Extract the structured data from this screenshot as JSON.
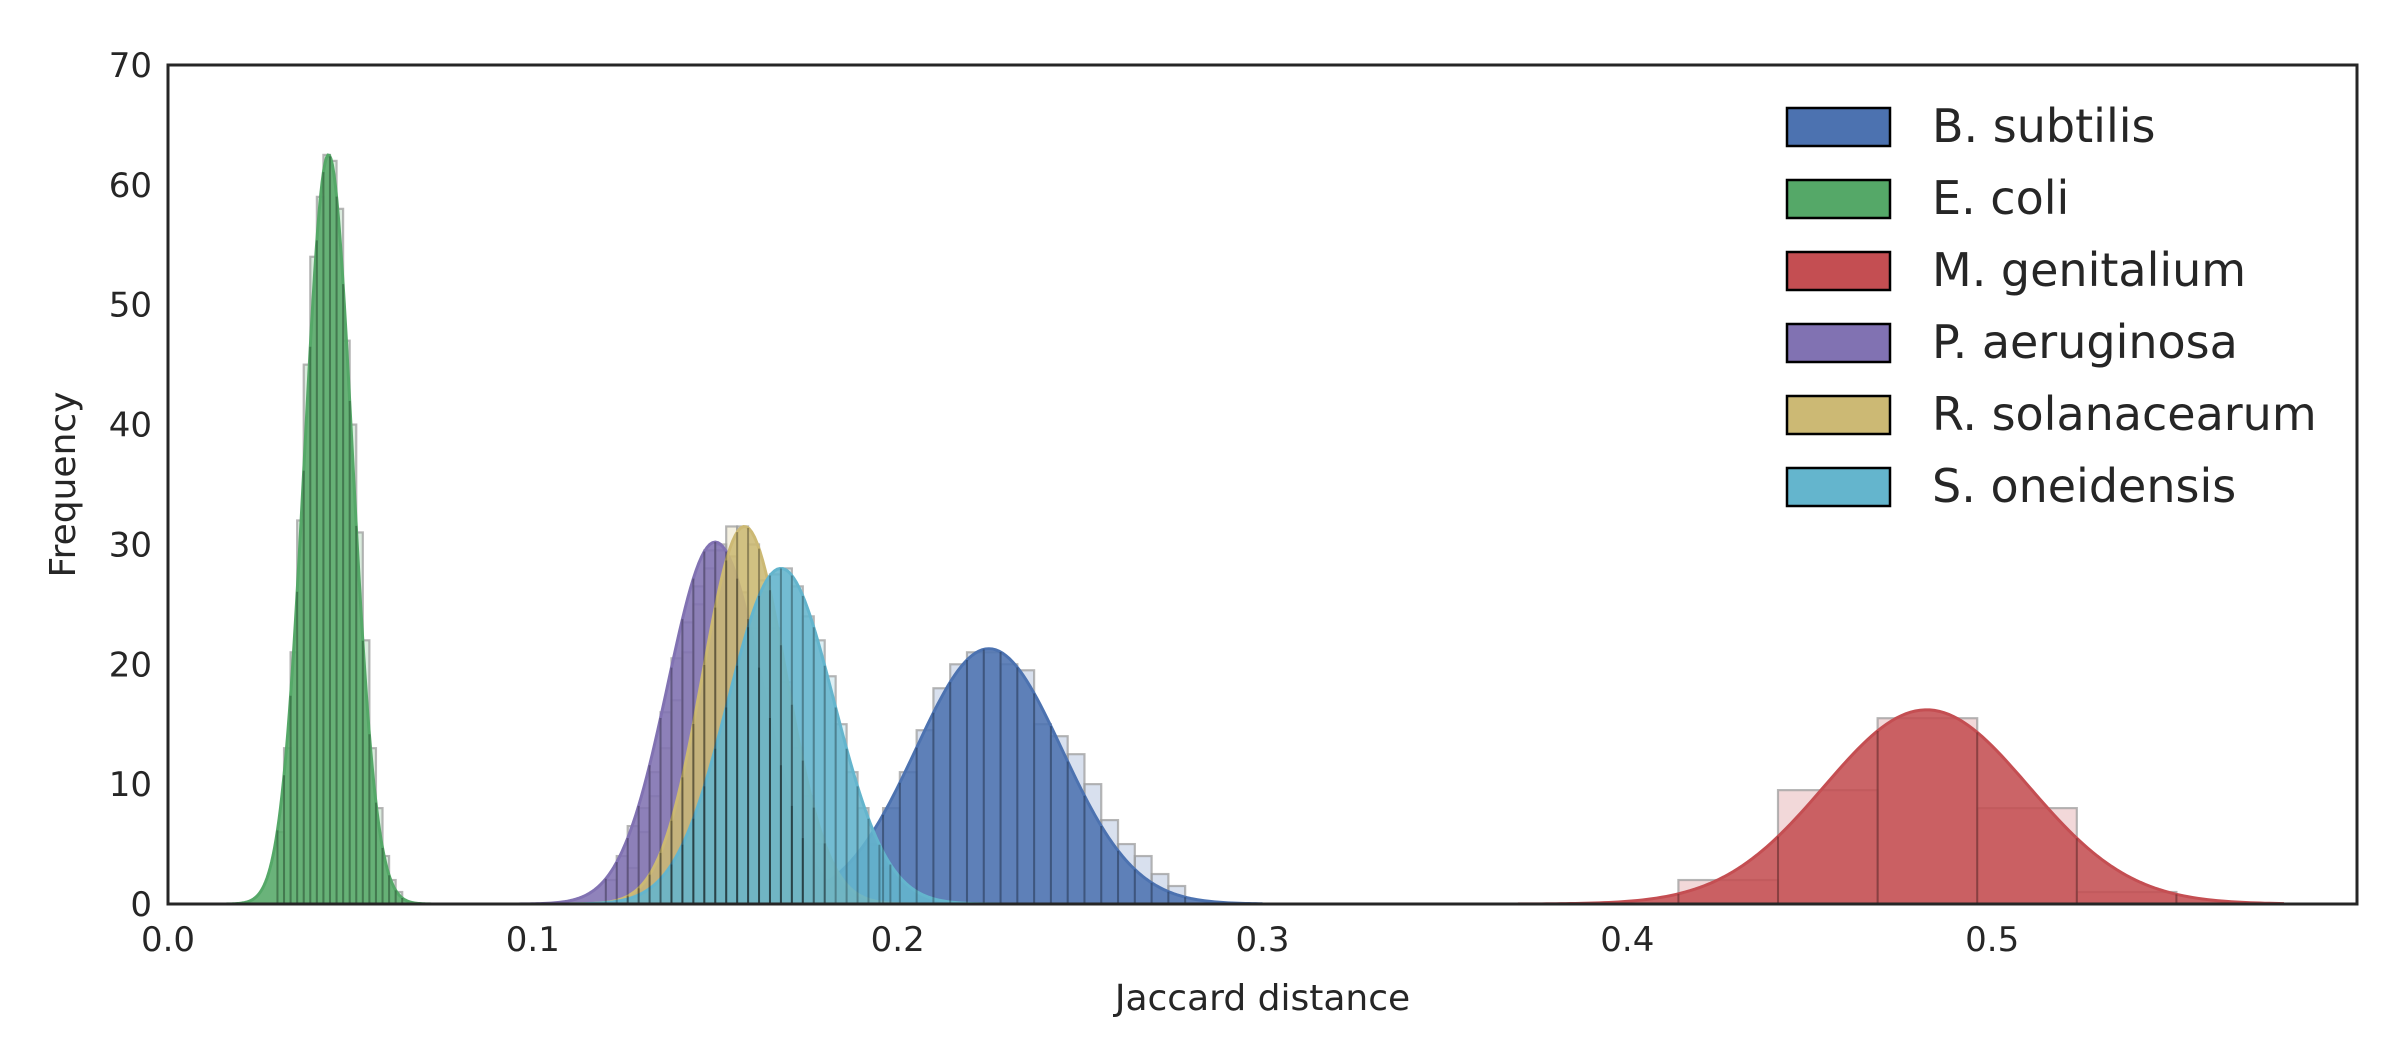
{
  "chart_data": {
    "type": "bar",
    "subtype": "histogram-with-density",
    "xlabel": "Jaccard distance",
    "ylabel": "Frequency",
    "xlim": [
      0.0,
      0.6
    ],
    "ylim": [
      0,
      70
    ],
    "xticks": [
      0.0,
      0.1,
      0.2,
      0.3,
      0.4,
      0.5
    ],
    "xtick_labels": [
      "0.0",
      "0.1",
      "0.2",
      "0.3",
      "0.4",
      "0.5"
    ],
    "yticks": [
      0,
      10,
      20,
      30,
      40,
      50,
      60,
      70
    ],
    "ytick_labels": [
      "0",
      "10",
      "20",
      "30",
      "40",
      "50",
      "60",
      "70"
    ],
    "grid": false,
    "legend_position": "top-right",
    "series": [
      {
        "name": "B. subtilis",
        "color": "#4c72b0",
        "curve": {
          "peak": 21.3,
          "mean": 0.225,
          "sd": 0.02,
          "range": [
            0.15,
            0.3
          ]
        },
        "bin_edges": [
          0.196,
          0.2006,
          0.2052,
          0.2098,
          0.2144,
          0.219,
          0.2236,
          0.2282,
          0.2328,
          0.2374,
          0.242,
          0.2466,
          0.2512,
          0.2558,
          0.2604,
          0.265,
          0.2696,
          0.2742,
          0.2788
        ],
        "counts": [
          8,
          11,
          14.5,
          18,
          20,
          21,
          21,
          20,
          19.5,
          15,
          14,
          12.5,
          10,
          7,
          5,
          4,
          2.5,
          1.5
        ]
      },
      {
        "name": "E. coli",
        "color": "#55a868",
        "curve": {
          "peak": 62.5,
          "mean": 0.044,
          "sd": 0.0065,
          "range": [
            0.015,
            0.08
          ]
        },
        "bin_edges": [
          0.03,
          0.0318,
          0.0336,
          0.0354,
          0.0372,
          0.039,
          0.0408,
          0.0426,
          0.0444,
          0.0462,
          0.048,
          0.0498,
          0.0516,
          0.0534,
          0.0552,
          0.057,
          0.0588,
          0.0606,
          0.0624,
          0.0642
        ],
        "counts": [
          6,
          13,
          21,
          32,
          45,
          54,
          59,
          62.5,
          62,
          58,
          47,
          40,
          31,
          22,
          13,
          8,
          4,
          2,
          1
        ]
      },
      {
        "name": "M. genitalium",
        "color": "#c44e52",
        "curve": {
          "peak": 16.2,
          "mean": 0.482,
          "sd": 0.028,
          "range": [
            0.37,
            0.58
          ]
        },
        "bin_edges": [
          0.414,
          0.4413,
          0.4686,
          0.4959,
          0.5232,
          0.5505
        ],
        "counts": [
          2,
          9.5,
          15.5,
          8.0,
          1.0
        ]
      },
      {
        "name": "P. aeruginosa",
        "color": "#8172b2",
        "curve": {
          "peak": 30.2,
          "mean": 0.15,
          "sd": 0.013,
          "range": [
            0.09,
            0.21
          ]
        },
        "bin_edges": [
          0.12,
          0.123,
          0.126,
          0.129,
          0.132,
          0.135,
          0.138,
          0.141,
          0.144,
          0.147,
          0.15,
          0.153,
          0.156,
          0.159,
          0.162,
          0.165,
          0.168,
          0.171,
          0.174
        ],
        "counts": [
          2,
          4,
          6.5,
          8,
          11,
          16,
          20.5,
          23.5,
          26.5,
          29.5,
          30,
          29,
          26,
          23,
          18,
          13,
          9,
          5
        ]
      },
      {
        "name": "R. solanacearum",
        "color": "#ccb974",
        "curve": {
          "peak": 31.5,
          "mean": 0.158,
          "sd": 0.0115,
          "range": [
            0.1,
            0.22
          ]
        },
        "bin_edges": [
          0.126,
          0.129,
          0.132,
          0.135,
          0.138,
          0.141,
          0.144,
          0.147,
          0.15,
          0.153,
          0.156,
          0.159,
          0.162,
          0.165,
          0.168,
          0.171,
          0.174,
          0.177,
          0.18
        ],
        "counts": [
          3,
          6,
          9,
          13,
          17,
          21,
          25,
          28,
          29.5,
          31.5,
          31.5,
          30,
          27,
          23,
          18.5,
          13,
          9,
          5
        ]
      },
      {
        "name": "S. oneidensis",
        "color": "#64b5cd",
        "curve": {
          "peak": 28.0,
          "mean": 0.168,
          "sd": 0.0145,
          "range": [
            0.11,
            0.23
          ]
        },
        "bin_edges": [
          0.138,
          0.141,
          0.144,
          0.147,
          0.15,
          0.153,
          0.156,
          0.159,
          0.162,
          0.165,
          0.168,
          0.171,
          0.174,
          0.177,
          0.18,
          0.183,
          0.186,
          0.189,
          0.192,
          0.195,
          0.198
        ],
        "counts": [
          3,
          5,
          8,
          11,
          14.5,
          18,
          21,
          24,
          26,
          27.5,
          28,
          26.5,
          24,
          22,
          19,
          15,
          11,
          8,
          5,
          3
        ]
      }
    ]
  }
}
